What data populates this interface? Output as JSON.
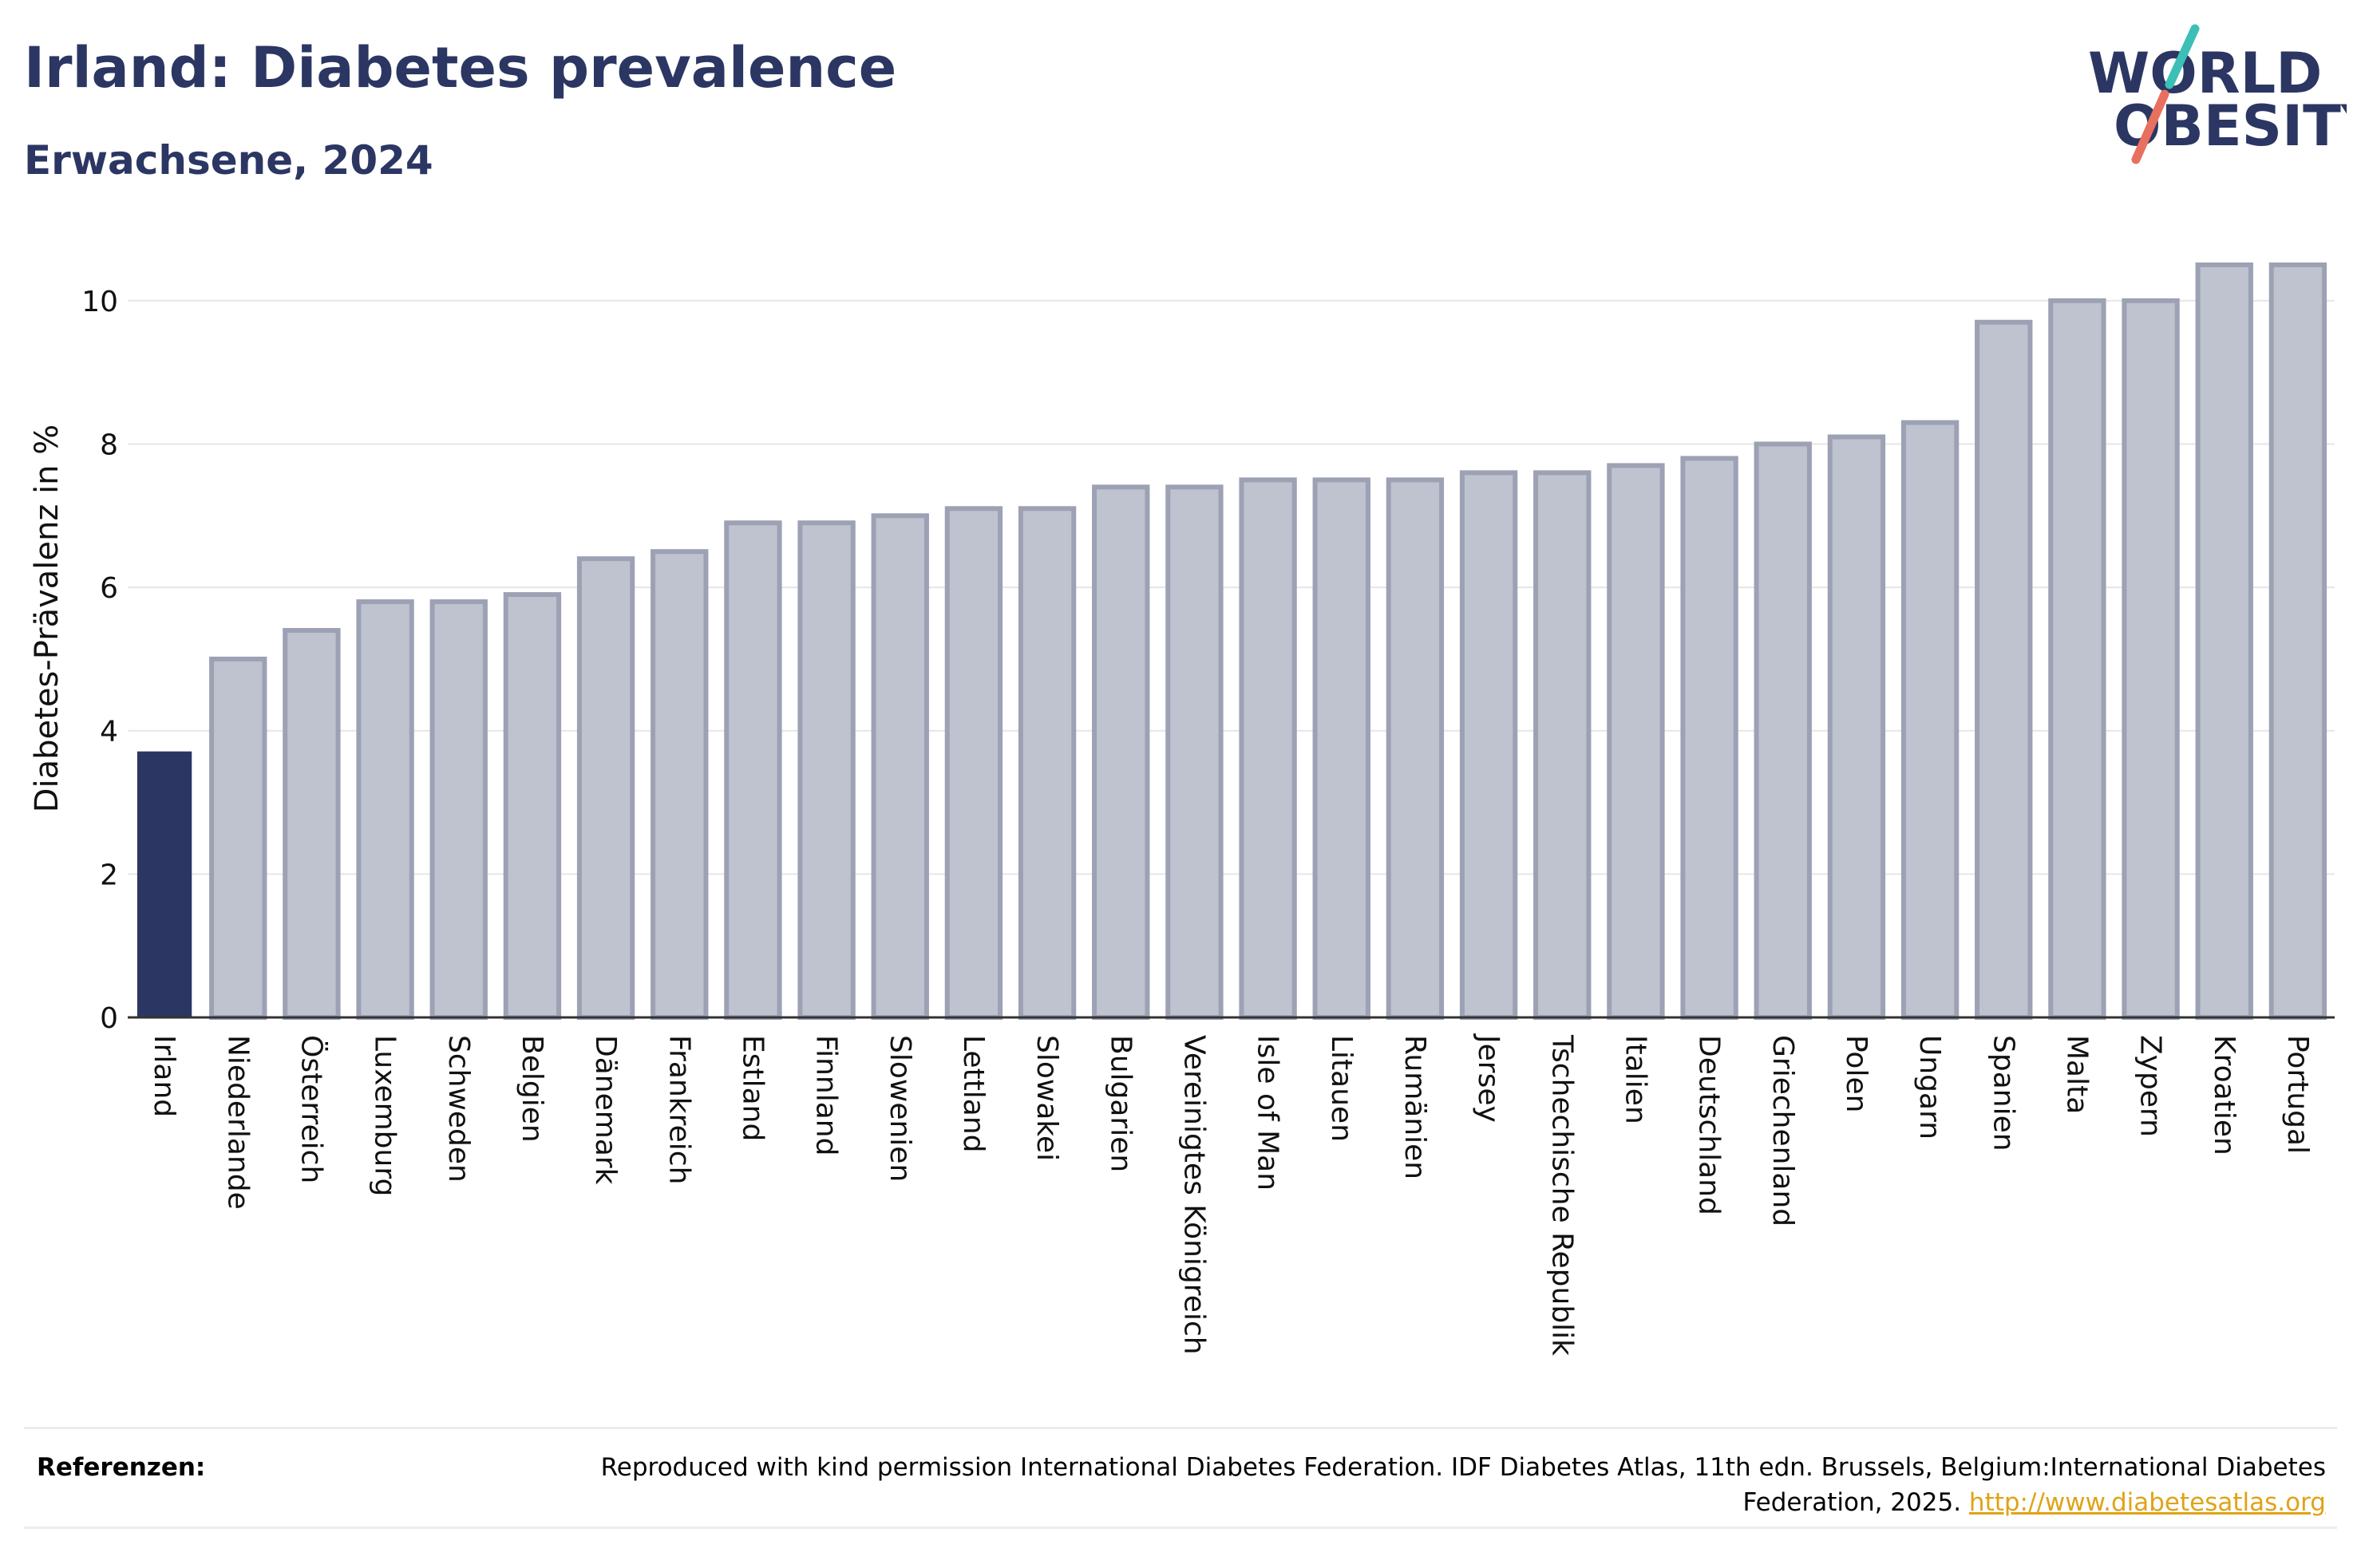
{
  "header": {
    "title": "Irland: Diabetes prevalence",
    "subtitle": "Erwachsene, 2024"
  },
  "logo": {
    "line1": "WORLD",
    "line2": "OBESITY"
  },
  "chart_data": {
    "type": "bar",
    "ylabel": "Diabetes-Prävalenz in %",
    "xlabel": "",
    "ylim": [
      0,
      11
    ],
    "yticks": [
      0,
      2,
      4,
      6,
      8,
      10
    ],
    "grid": true,
    "categories": [
      "Irland",
      "Niederlande",
      "Österreich",
      "Luxemburg",
      "Schweden",
      "Belgien",
      "Dänemark",
      "Frankreich",
      "Estland",
      "Finnland",
      "Slowenien",
      "Lettland",
      "Slowakei",
      "Bulgarien",
      "Vereinigtes Königreich",
      "Isle of Man",
      "Litauen",
      "Rumänien",
      "Jersey",
      "Tschechische Republik",
      "Italien",
      "Deutschland",
      "Griechenland",
      "Polen",
      "Ungarn",
      "Spanien",
      "Malta",
      "Zypern",
      "Kroatien",
      "Portugal"
    ],
    "values": [
      3.7,
      5.0,
      5.4,
      5.8,
      5.8,
      5.9,
      6.4,
      6.5,
      6.9,
      6.9,
      7.0,
      7.1,
      7.1,
      7.4,
      7.4,
      7.5,
      7.5,
      7.5,
      7.6,
      7.6,
      7.7,
      7.8,
      8.0,
      8.1,
      8.3,
      9.7,
      10.0,
      10.0,
      10.5,
      10.5
    ],
    "highlight": "Irland",
    "colors": {
      "highlight": "#2b3663",
      "bar_fill": "#bfc2cf",
      "bar_stroke": "#9da1b4"
    }
  },
  "references": {
    "label": "Referenzen:",
    "text": "Reproduced with kind permission International Diabetes Federation. IDF Diabetes Atlas, 11th edn. Brussels, Belgium:International Diabetes Federation, 2025.",
    "link": "http://www.diabetesatlas.org"
  }
}
